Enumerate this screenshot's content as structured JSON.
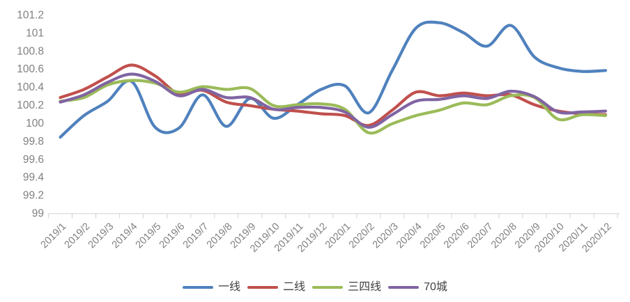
{
  "chart_data": {
    "type": "line",
    "title": "",
    "xlabel": "",
    "ylabel": "",
    "categories": [
      "2019/1",
      "2019/2",
      "2019/3",
      "2019/4",
      "2019/5",
      "2019/6",
      "2019/7",
      "2019/8",
      "2019/9",
      "2019/10",
      "2019/11",
      "2019/12",
      "2020/1",
      "2020/2",
      "2020/3",
      "2020/4",
      "2020/5",
      "2020/6",
      "2020/7",
      "2020/8",
      "2020/9",
      "2020/10",
      "2020/11",
      "2020/12"
    ],
    "series": [
      {
        "name": "一线",
        "color": "#4F81BD",
        "values": [
          99.84,
          100.08,
          100.24,
          100.46,
          99.95,
          99.94,
          100.31,
          99.96,
          100.27,
          100.05,
          100.2,
          100.37,
          100.41,
          100.11,
          100.58,
          101.05,
          101.11,
          101.0,
          100.85,
          101.08,
          100.73,
          100.61,
          100.57,
          100.58
        ]
      },
      {
        "name": "二线",
        "color": "#C0504D",
        "values": [
          100.28,
          100.37,
          100.51,
          100.64,
          100.52,
          100.32,
          100.36,
          100.23,
          100.19,
          100.15,
          100.13,
          100.1,
          100.08,
          99.97,
          100.14,
          100.34,
          100.3,
          100.33,
          100.3,
          100.31,
          100.2,
          100.13,
          100.1,
          100.09
        ]
      },
      {
        "name": "三四线",
        "color": "#9BBB59",
        "values": [
          100.24,
          100.28,
          100.42,
          100.47,
          100.44,
          100.34,
          100.4,
          100.37,
          100.38,
          100.19,
          100.2,
          100.21,
          100.15,
          99.89,
          99.99,
          100.08,
          100.14,
          100.22,
          100.2,
          100.3,
          100.28,
          100.04,
          100.09,
          100.08
        ]
      },
      {
        "name": "70城",
        "color": "#8064A2",
        "values": [
          100.23,
          100.31,
          100.45,
          100.54,
          100.46,
          100.3,
          100.37,
          100.28,
          100.28,
          100.15,
          100.17,
          100.17,
          100.12,
          99.95,
          100.09,
          100.24,
          100.26,
          100.3,
          100.27,
          100.35,
          100.29,
          100.12,
          100.12,
          100.13
        ]
      }
    ],
    "yticks": [
      "99",
      "99.2",
      "99.4",
      "99.6",
      "99.8",
      "100",
      "100.2",
      "100.4",
      "100.6",
      "100.8",
      "101",
      "101.2"
    ],
    "ylim": [
      99,
      101.2
    ],
    "ytick_step": 0.2,
    "grid": false,
    "legend_position": "bottom",
    "line_smoothing": "smooth",
    "axis_color": "#D9D9D9",
    "tick_label_color": "#808080"
  }
}
